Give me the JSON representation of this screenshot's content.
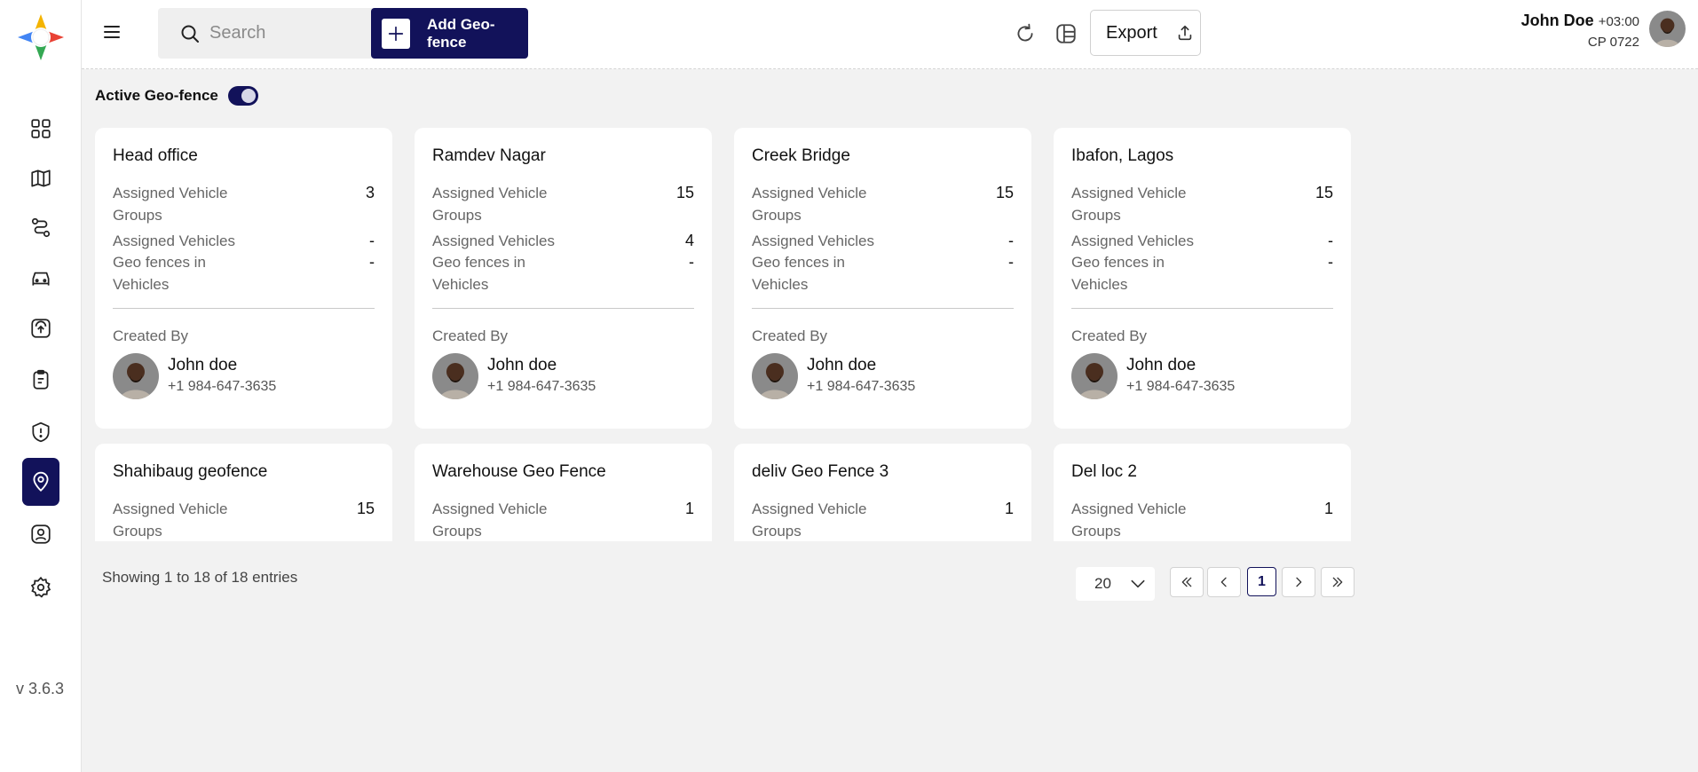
{
  "app": {
    "version": "v 3.6.3"
  },
  "sidebar": {
    "items": [
      {
        "name": "dashboard-icon",
        "active": false
      },
      {
        "name": "map-icon",
        "active": false
      },
      {
        "name": "route-icon",
        "active": false
      },
      {
        "name": "vehicle-icon",
        "active": false
      },
      {
        "name": "tracking-icon",
        "active": false
      },
      {
        "name": "clipboard-icon",
        "active": false
      },
      {
        "name": "alert-icon",
        "active": false
      },
      {
        "name": "geofence-icon",
        "active": true
      },
      {
        "name": "user-profile-icon",
        "active": false
      },
      {
        "name": "settings-icon",
        "active": false
      }
    ]
  },
  "header": {
    "search_placeholder": "Search",
    "add_button_label": "Add Geo-fence",
    "export_label": "Export",
    "user_name": "John Doe",
    "user_timezone": "+03:00",
    "user_code": "CP 0722"
  },
  "filters": {
    "active_label": "Active Geo-fence",
    "active_on": true
  },
  "labels": {
    "assigned_vehicle_groups": "Assigned Vehicle Groups",
    "assigned_vehicles": "Assigned Vehicles",
    "geofences_in_vehicles": "Geo fences in Vehicles",
    "created_by": "Created By"
  },
  "cards": [
    {
      "title": "Head office",
      "groups": "3",
      "vehicles": "-",
      "geofences": "-",
      "creator": "John doe",
      "phone": "+1 984-647-3635"
    },
    {
      "title": "Ramdev Nagar",
      "groups": "15",
      "vehicles": "4",
      "geofences": "-",
      "creator": "John doe",
      "phone": "+1 984-647-3635"
    },
    {
      "title": "Creek Bridge",
      "groups": "15",
      "vehicles": "-",
      "geofences": "-",
      "creator": "John doe",
      "phone": "+1 984-647-3635"
    },
    {
      "title": "Ibafon, Lagos",
      "groups": "15",
      "vehicles": "-",
      "geofences": "-",
      "creator": "John doe",
      "phone": "+1 984-647-3635"
    },
    {
      "title": "Shahibaug geofence",
      "groups": "15"
    },
    {
      "title": "Warehouse Geo Fence",
      "groups": "1"
    },
    {
      "title": "deliv Geo Fence 3",
      "groups": "1"
    },
    {
      "title": "Del loc 2",
      "groups": "1"
    }
  ],
  "pagination": {
    "showing_text": "Showing 1 to 18 of 18 entries",
    "page_size": "20",
    "current_page": "1"
  },
  "colors": {
    "primary": "#12125a",
    "background": "#f2f2f2"
  }
}
